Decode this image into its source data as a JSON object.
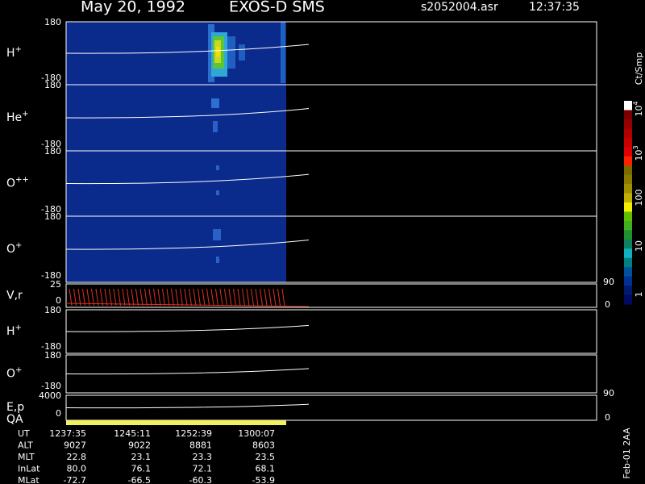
{
  "header": {
    "date": "May 20, 1992",
    "instrument": "EXOS-D SMS",
    "file": "s2052004.asr",
    "time": "12:37:35"
  },
  "panels": [
    {
      "label": "H",
      "sup": "+",
      "top": "180",
      "bottom": "-180"
    },
    {
      "label": "He",
      "sup": "+",
      "top": "180",
      "bottom": "-180"
    },
    {
      "label": "O",
      "sup": "++",
      "top": "180",
      "bottom": "-180"
    },
    {
      "label": "O",
      "sup": "+",
      "top": "180",
      "bottom": "-180"
    },
    {
      "label": "V,r",
      "top": "25",
      "bottom": "0",
      "right_top": "90",
      "right_bottom": "0"
    },
    {
      "label": "H",
      "sup": "+",
      "top": "180",
      "bottom": "-180"
    },
    {
      "label": "O",
      "sup": "+",
      "top": "180",
      "bottom": "-180"
    },
    {
      "label": "E,p",
      "label2": "QA",
      "top": "4000",
      "bottom": "0",
      "right_top": "90",
      "right_bottom": "0"
    }
  ],
  "colorbar": {
    "title": "Ct/Smp",
    "labels": [
      [
        "10",
        "4"
      ],
      [
        "10",
        "3"
      ],
      [
        "100"
      ],
      [
        "10"
      ],
      [
        "1"
      ]
    ]
  },
  "footer": {
    "rows": [
      [
        "UT",
        "1237:35",
        "1245:11",
        "1252:39",
        "1300:07"
      ],
      [
        "ALT",
        "9027",
        "9022",
        "8881",
        "8603"
      ],
      [
        "MLT",
        "22.8",
        "23.1",
        "23.3",
        "23.5"
      ],
      [
        "InLat",
        "80.0",
        "76.1",
        "72.1",
        "68.1"
      ],
      [
        "MLat",
        "-72.7",
        "-66.5",
        "-60.3",
        "-53.9"
      ]
    ],
    "stamp": "Feb-01 2AA"
  }
}
